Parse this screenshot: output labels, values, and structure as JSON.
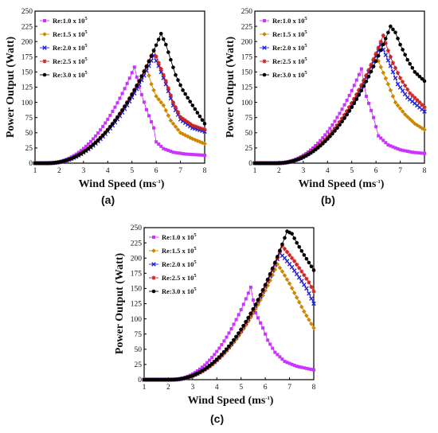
{
  "chart_data": [
    {
      "type": "line",
      "caption": "(a)",
      "xlabel": "Wind Speed (ms",
      "xlabel_sup": "-1",
      "xlabel_end": ")",
      "ylabel": "Power Output (Watt)",
      "xlim": [
        1,
        8
      ],
      "ylim": [
        0,
        250
      ],
      "xticks": [
        "1",
        "2",
        "3",
        "4",
        "5",
        "6",
        "7",
        "8"
      ],
      "yticks": [
        "0",
        "25",
        "50",
        "75",
        "100",
        "125",
        "150",
        "175",
        "200",
        "225",
        "250"
      ],
      "legend": "top-left",
      "x_step": 0.1,
      "series": [
        {
          "name": "Re:1.0 x 10",
          "sup": "5",
          "color": "#cc33ff",
          "marker": "square",
          "curve": {
            "start": 1.5,
            "peak_x": 5.1,
            "peak_y": 158,
            "a_pts": [
              [
                5.1,
                158
              ],
              [
                5.3,
                125
              ],
              [
                5.6,
                88
              ],
              [
                5.9,
                58
              ],
              [
                6.0,
                35
              ],
              [
                6.3,
                24
              ],
              [
                6.7,
                18
              ],
              [
                7.2,
                15
              ],
              [
                8.0,
                13
              ]
            ]
          }
        },
        {
          "name": "Re:1.5 x 10",
          "sup": "5",
          "color": "#cc8800",
          "marker": "diamond",
          "curve": {
            "start": 1.5,
            "peak_x": 5.6,
            "peak_y": 158,
            "a_pts": [
              [
                5.6,
                158
              ],
              [
                5.8,
                130
              ],
              [
                6.0,
                110
              ],
              [
                6.3,
                95
              ],
              [
                6.6,
                70
              ],
              [
                7.0,
                50
              ],
              [
                7.5,
                40
              ],
              [
                8.0,
                32
              ]
            ]
          }
        },
        {
          "name": "Re:2.0 x 10",
          "sup": "5",
          "color": "#2222dd",
          "marker": "x",
          "curve": {
            "start": 1.5,
            "peak_x": 5.9,
            "peak_y": 177,
            "a_pts": [
              [
                5.9,
                177
              ],
              [
                6.1,
                160
              ],
              [
                6.4,
                130
              ],
              [
                6.7,
                95
              ],
              [
                7.0,
                72
              ],
              [
                7.5,
                58
              ],
              [
                8.0,
                52
              ]
            ]
          }
        },
        {
          "name": "Re:2.5 x 10",
          "sup": "5",
          "color": "#cc2222",
          "marker": "star",
          "curve": {
            "start": 1.5,
            "peak_x": 5.9,
            "peak_y": 186,
            "a_pts": [
              [
                5.9,
                186
              ],
              [
                6.1,
                165
              ],
              [
                6.4,
                135
              ],
              [
                6.7,
                100
              ],
              [
                7.0,
                76
              ],
              [
                7.5,
                62
              ],
              [
                8.0,
                55
              ]
            ]
          }
        },
        {
          "name": "Re:3.0 x 10",
          "sup": "5",
          "color": "#000000",
          "marker": "circle",
          "curve": {
            "start": 1.5,
            "peak_x": 6.2,
            "peak_y": 213,
            "a_pts": [
              [
                6.2,
                213
              ],
              [
                6.4,
                195
              ],
              [
                6.6,
                170
              ],
              [
                6.8,
                145
              ],
              [
                7.1,
                120
              ],
              [
                7.5,
                95
              ],
              [
                8.0,
                65
              ]
            ]
          }
        }
      ]
    },
    {
      "type": "line",
      "caption": "(b)",
      "xlabel": "Wind Speed (ms",
      "xlabel_sup": "-1",
      "xlabel_end": ")",
      "ylabel": "Power Output (Watt)",
      "xlim": [
        1,
        8
      ],
      "ylim": [
        0,
        250
      ],
      "xticks": [
        "1",
        "2",
        "3",
        "4",
        "5",
        "6",
        "7",
        "8"
      ],
      "yticks": [
        "0",
        "25",
        "50",
        "75",
        "100",
        "125",
        "150",
        "175",
        "200",
        "225",
        "250"
      ],
      "legend": "top-left",
      "x_step": 0.1,
      "series": [
        {
          "name": "Re:1.0 x 10",
          "sup": "5",
          "color": "#cc33ff",
          "marker": "square",
          "curve": {
            "start": 1.9,
            "peak_x": 5.4,
            "peak_y": 155,
            "a_pts": [
              [
                5.4,
                155
              ],
              [
                5.6,
                110
              ],
              [
                5.9,
                75
              ],
              [
                6.1,
                45
              ],
              [
                6.5,
                30
              ],
              [
                7.0,
                22
              ],
              [
                7.5,
                18
              ],
              [
                8.0,
                16
              ]
            ]
          }
        },
        {
          "name": "Re:1.5 x 10",
          "sup": "5",
          "color": "#cc8800",
          "marker": "diamond",
          "curve": {
            "start": 1.9,
            "peak_x": 6.0,
            "peak_y": 178,
            "a_pts": [
              [
                6.0,
                178
              ],
              [
                6.2,
                158
              ],
              [
                6.5,
                130
              ],
              [
                6.8,
                100
              ],
              [
                7.2,
                80
              ],
              [
                7.6,
                65
              ],
              [
                8.0,
                55
              ]
            ]
          }
        },
        {
          "name": "Re:2.0 x 10",
          "sup": "5",
          "color": "#2222dd",
          "marker": "x",
          "curve": {
            "start": 1.9,
            "peak_x": 6.2,
            "peak_y": 195,
            "a_pts": [
              [
                6.2,
                195
              ],
              [
                6.4,
                178
              ],
              [
                6.6,
                160
              ],
              [
                6.9,
                130
              ],
              [
                7.3,
                108
              ],
              [
                7.7,
                95
              ],
              [
                8.0,
                85
              ]
            ]
          }
        },
        {
          "name": "Re:2.5 x 10",
          "sup": "5",
          "color": "#cc2222",
          "marker": "star",
          "curve": {
            "start": 1.9,
            "peak_x": 6.3,
            "peak_y": 210,
            "a_pts": [
              [
                6.3,
                210
              ],
              [
                6.5,
                185
              ],
              [
                6.7,
                165
              ],
              [
                7.0,
                140
              ],
              [
                7.4,
                115
              ],
              [
                7.8,
                100
              ],
              [
                8.0,
                92
              ]
            ]
          }
        },
        {
          "name": "Re:3.0 x 10",
          "sup": "5",
          "color": "#000000",
          "marker": "circle",
          "curve": {
            "start": 1.9,
            "peak_x": 6.6,
            "peak_y": 225,
            "a_pts": [
              [
                6.6,
                225
              ],
              [
                6.8,
                215
              ],
              [
                7.0,
                195
              ],
              [
                7.3,
                170
              ],
              [
                7.6,
                150
              ],
              [
                8.0,
                135
              ]
            ]
          }
        }
      ]
    },
    {
      "type": "line",
      "caption": "(c)",
      "xlabel": "Wind Speed (ms",
      "xlabel_sup": "-1",
      "xlabel_end": ")",
      "ylabel": "Power Output (Watt)",
      "xlim": [
        1,
        8
      ],
      "ylim": [
        0,
        250
      ],
      "xticks": [
        "1",
        "2",
        "3",
        "4",
        "5",
        "6",
        "7",
        "8"
      ],
      "yticks": [
        "0",
        "25",
        "50",
        "75",
        "100",
        "125",
        "150",
        "175",
        "200",
        "225",
        "250"
      ],
      "legend": "top-left",
      "x_step": 0.1,
      "series": [
        {
          "name": "Re:1.0 x 10",
          "sup": "5",
          "color": "#cc33ff",
          "marker": "square",
          "curve": {
            "start": 2.1,
            "peak_x": 5.4,
            "peak_y": 152,
            "a_pts": [
              [
                5.4,
                152
              ],
              [
                5.6,
                110
              ],
              [
                5.9,
                85
              ],
              [
                6.1,
                65
              ],
              [
                6.4,
                45
              ],
              [
                6.8,
                30
              ],
              [
                7.3,
                22
              ],
              [
                8.0,
                16
              ]
            ]
          }
        },
        {
          "name": "Re:1.5 x 10",
          "sup": "5",
          "color": "#cc8800",
          "marker": "diamond",
          "curve": {
            "start": 2.1,
            "peak_x": 6.5,
            "peak_y": 190,
            "a_pts": [
              [
                6.5,
                190
              ],
              [
                6.7,
                178
              ],
              [
                7.0,
                158
              ],
              [
                7.3,
                135
              ],
              [
                7.6,
                112
              ],
              [
                8.0,
                85
              ]
            ]
          }
        },
        {
          "name": "Re:2.0 x 10",
          "sup": "5",
          "color": "#2222dd",
          "marker": "x",
          "curve": {
            "start": 2.1,
            "peak_x": 6.6,
            "peak_y": 208,
            "a_pts": [
              [
                6.6,
                208
              ],
              [
                6.8,
                200
              ],
              [
                7.1,
                185
              ],
              [
                7.4,
                168
              ],
              [
                7.7,
                150
              ],
              [
                8.0,
                125
              ]
            ]
          }
        },
        {
          "name": "Re:2.5 x 10",
          "sup": "5",
          "color": "#cc2222",
          "marker": "star",
          "curve": {
            "start": 2.1,
            "peak_x": 6.7,
            "peak_y": 220,
            "a_pts": [
              [
                6.7,
                220
              ],
              [
                6.9,
                210
              ],
              [
                7.2,
                195
              ],
              [
                7.5,
                178
              ],
              [
                7.8,
                160
              ],
              [
                8.0,
                145
              ]
            ]
          }
        },
        {
          "name": "Re:3.0 x 10",
          "sup": "5",
          "color": "#000000",
          "marker": "circle",
          "curve": {
            "start": 2.1,
            "peak_x": 6.9,
            "peak_y": 244,
            "a_pts": [
              [
                6.9,
                244
              ],
              [
                7.1,
                240
              ],
              [
                7.3,
                225
              ],
              [
                7.6,
                205
              ],
              [
                8.0,
                180
              ]
            ]
          }
        }
      ]
    }
  ]
}
